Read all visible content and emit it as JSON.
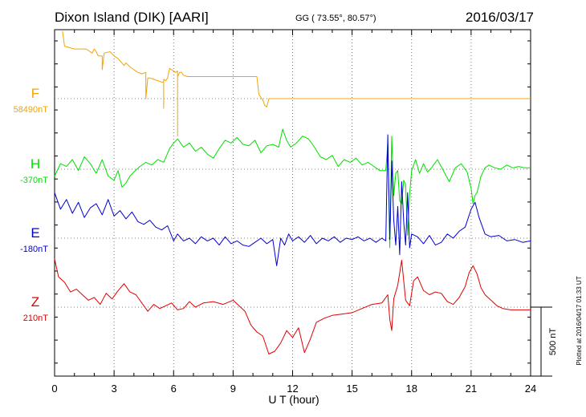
{
  "header": {
    "station": "Dixon Island (DIK)  [AARI]",
    "coords": "GG ( 73.55°,  80.57°)",
    "date": "2016/03/17"
  },
  "footer_note": "Plotted at 2016/04/17 01:33 UT",
  "scale_label": "500 nT",
  "colors": {
    "F": "#f5a400",
    "H": "#00e000",
    "E": "#0000d0",
    "Z": "#e00000",
    "axis": "#000000"
  },
  "chart_data": {
    "type": "line",
    "title": "Dixon Island (DIK)  [AARI]",
    "xlabel": "U T (hour)",
    "xlim": [
      0,
      24
    ],
    "xticks": [
      "0",
      "3",
      "6",
      "9",
      "12",
      "15",
      "18",
      "21",
      "24"
    ],
    "unit": "nT",
    "scale_bar_nT": 500,
    "grid": true,
    "series": [
      {
        "name": "F",
        "baseline_label": "58490nT",
        "baseline": 58490,
        "x": [
          0.4,
          0.5,
          1.0,
          1.3,
          1.6,
          1.9,
          2.0,
          2.1,
          2.2,
          2.4,
          2.4,
          2.5,
          2.8,
          3.0,
          3.2,
          3.5,
          3.6,
          3.8,
          4.0,
          4.2,
          4.4,
          4.6,
          4.6,
          4.7,
          4.8,
          5.0,
          5.2,
          5.4,
          5.5,
          5.5,
          5.5,
          5.6,
          5.7,
          5.8,
          5.9,
          6.0,
          6.1,
          6.2,
          6.2,
          6.2,
          6.3,
          6.4,
          6.5,
          6.7,
          7.0,
          7.5,
          8.0,
          9.0,
          10.0,
          10.2,
          10.3,
          10.5,
          10.6,
          10.7,
          10.8,
          11.0,
          12.0,
          14.0,
          16.0,
          18.0,
          20.0,
          22.0,
          24.0
        ],
        "y": [
          58980,
          58870,
          58850,
          58850,
          58850,
          58820,
          58850,
          58830,
          58800,
          58800,
          58700,
          58820,
          58830,
          58800,
          58780,
          58730,
          58750,
          58720,
          58700,
          58680,
          58670,
          58680,
          58490,
          58640,
          58640,
          58630,
          58620,
          58610,
          58610,
          58420,
          58630,
          58620,
          58640,
          58710,
          58700,
          58690,
          58680,
          58690,
          58220,
          58650,
          58680,
          58680,
          58660,
          58650,
          58650,
          58650,
          58650,
          58650,
          58650,
          58650,
          58520,
          58480,
          58440,
          58430,
          58490,
          58490,
          58490,
          58490,
          58490,
          58490,
          58490,
          58490,
          58490
        ]
      },
      {
        "name": "H",
        "baseline_label": "-370nT",
        "baseline": -370,
        "x": [
          0.0,
          0.3,
          0.6,
          0.9,
          1.2,
          1.5,
          1.8,
          2.1,
          2.4,
          2.7,
          3.0,
          3.2,
          3.4,
          3.6,
          3.8,
          4.0,
          4.3,
          4.6,
          4.9,
          5.2,
          5.5,
          5.8,
          6.0,
          6.2,
          6.5,
          6.8,
          7.1,
          7.4,
          7.7,
          8.0,
          8.3,
          8.6,
          8.9,
          9.2,
          9.5,
          9.8,
          10.1,
          10.4,
          10.7,
          11.0,
          11.3,
          11.5,
          11.7,
          11.9,
          12.2,
          12.5,
          12.8,
          13.1,
          13.4,
          13.7,
          14.0,
          14.3,
          14.6,
          14.9,
          15.2,
          15.5,
          15.8,
          16.1,
          16.4,
          16.7,
          16.8,
          16.9,
          17.0,
          17.1,
          17.2,
          17.3,
          17.4,
          17.5,
          17.6,
          17.7,
          17.8,
          17.9,
          18.0,
          18.2,
          18.4,
          18.6,
          18.8,
          19.0,
          19.3,
          19.6,
          19.9,
          20.2,
          20.5,
          20.8,
          21.0,
          21.1,
          21.2,
          21.3,
          21.5,
          21.7,
          21.9,
          22.2,
          22.5,
          22.8,
          23.1,
          23.4,
          23.7,
          24.0
        ],
        "y": [
          -420,
          -330,
          -350,
          -300,
          -380,
          -280,
          -330,
          -400,
          -300,
          -420,
          -450,
          -380,
          -500,
          -470,
          -420,
          -390,
          -350,
          -320,
          -340,
          -300,
          -320,
          -220,
          -180,
          -150,
          -210,
          -180,
          -240,
          -210,
          -260,
          -290,
          -220,
          -160,
          -180,
          -140,
          -190,
          -200,
          -160,
          -250,
          -200,
          -190,
          -210,
          -80,
          -160,
          -210,
          -180,
          -130,
          -150,
          -210,
          -280,
          -300,
          -270,
          -350,
          -300,
          -320,
          -290,
          -340,
          -320,
          -350,
          -380,
          -380,
          -180,
          -940,
          -130,
          -560,
          -400,
          -380,
          -600,
          -620,
          -450,
          -480,
          -850,
          -550,
          -380,
          -300,
          -400,
          -330,
          -390,
          -360,
          -300,
          -380,
          -460,
          -360,
          -330,
          -390,
          -510,
          -620,
          -560,
          -540,
          -420,
          -360,
          -340,
          -360,
          -370,
          -340,
          -360,
          -350,
          -360,
          -360
        ]
      },
      {
        "name": "E",
        "baseline_label": "-180nT",
        "baseline": -180,
        "x": [
          0.0,
          0.3,
          0.6,
          0.9,
          1.2,
          1.5,
          1.8,
          2.1,
          2.4,
          2.7,
          3.0,
          3.3,
          3.6,
          3.9,
          4.2,
          4.5,
          4.8,
          5.1,
          5.4,
          5.7,
          6.0,
          6.2,
          6.5,
          6.8,
          7.1,
          7.4,
          7.7,
          8.0,
          8.3,
          8.6,
          8.9,
          9.2,
          9.5,
          9.8,
          10.1,
          10.4,
          10.7,
          11.0,
          11.2,
          11.4,
          11.6,
          11.8,
          12.0,
          12.3,
          12.6,
          12.9,
          13.2,
          13.5,
          13.8,
          14.1,
          14.4,
          14.7,
          15.0,
          15.3,
          15.6,
          15.9,
          16.2,
          16.5,
          16.7,
          16.8,
          16.9,
          17.0,
          17.1,
          17.2,
          17.3,
          17.4,
          17.5,
          17.6,
          17.7,
          17.8,
          17.9,
          18.0,
          18.3,
          18.6,
          18.9,
          19.2,
          19.5,
          19.8,
          20.1,
          20.4,
          20.7,
          21.0,
          21.2,
          21.4,
          21.7,
          22.0,
          22.4,
          22.8,
          23.2,
          23.6,
          24.0
        ],
        "y": [
          150,
          30,
          100,
          0,
          80,
          -30,
          40,
          70,
          -10,
          100,
          -20,
          20,
          -40,
          10,
          -60,
          -80,
          -50,
          -100,
          -120,
          -90,
          -200,
          -150,
          -200,
          -180,
          -220,
          -170,
          -200,
          -180,
          -230,
          -170,
          -220,
          -200,
          -230,
          -240,
          -210,
          -180,
          -220,
          -190,
          -380,
          -180,
          -230,
          -150,
          -200,
          -170,
          -210,
          -160,
          -220,
          -180,
          -200,
          -170,
          -210,
          -180,
          -190,
          -170,
          -200,
          -180,
          -210,
          -180,
          -200,
          570,
          -190,
          380,
          -50,
          -230,
          50,
          -300,
          230,
          -60,
          -230,
          150,
          -250,
          -150,
          -170,
          -220,
          -160,
          -230,
          -210,
          -150,
          -180,
          -130,
          -100,
          30,
          80,
          -30,
          -150,
          -170,
          -160,
          -200,
          -190,
          -210,
          -200
        ]
      },
      {
        "name": "Z",
        "baseline_label": "210nT",
        "baseline": 210,
        "x": [
          0.0,
          0.2,
          0.5,
          0.8,
          1.1,
          1.4,
          1.7,
          2.0,
          2.3,
          2.6,
          2.9,
          3.2,
          3.5,
          3.8,
          4.1,
          4.4,
          4.7,
          5.0,
          5.3,
          5.6,
          5.9,
          6.2,
          6.5,
          6.8,
          7.1,
          7.5,
          8.0,
          8.5,
          9.0,
          9.3,
          9.6,
          9.9,
          10.2,
          10.5,
          10.8,
          11.1,
          11.4,
          11.7,
          12.0,
          12.3,
          12.6,
          12.9,
          13.2,
          13.6,
          14.0,
          14.5,
          15.0,
          15.5,
          16.0,
          16.5,
          16.8,
          16.9,
          17.0,
          17.1,
          17.3,
          17.5,
          17.7,
          17.9,
          18.1,
          18.3,
          18.6,
          18.9,
          19.2,
          19.5,
          19.8,
          20.1,
          20.4,
          20.7,
          20.9,
          21.1,
          21.3,
          21.5,
          21.7,
          22.0,
          22.3,
          22.6,
          23.0,
          23.5,
          24.0
        ],
        "y": [
          560,
          430,
          390,
          320,
          340,
          300,
          260,
          280,
          230,
          310,
          270,
          330,
          380,
          320,
          300,
          240,
          180,
          230,
          200,
          220,
          240,
          190,
          200,
          250,
          210,
          240,
          250,
          230,
          260,
          220,
          180,
          80,
          30,
          0,
          -130,
          -110,
          -50,
          40,
          -10,
          60,
          -120,
          -20,
          100,
          130,
          150,
          160,
          170,
          200,
          230,
          240,
          300,
          120,
          40,
          270,
          370,
          550,
          260,
          220,
          400,
          430,
          330,
          300,
          320,
          310,
          250,
          230,
          280,
          360,
          460,
          510,
          450,
          350,
          300,
          260,
          220,
          200,
          190,
          190,
          190
        ]
      }
    ]
  }
}
